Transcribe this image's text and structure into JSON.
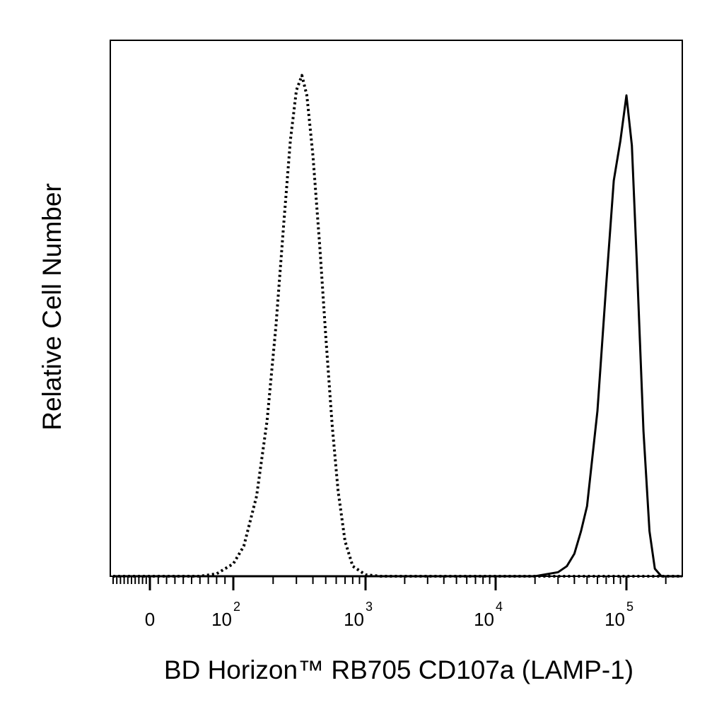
{
  "chart_data": {
    "type": "line",
    "title": "",
    "xlabel": "BD Horizon™ RB705 CD107a (LAMP-1)",
    "ylabel": "Relative Cell Number",
    "x_scale": "biexponential",
    "xlim": [
      -100,
      200000
    ],
    "ylim": [
      0,
      1.07
    ],
    "grid": false,
    "x_tick_labels": [
      {
        "base": "0",
        "exp": "",
        "value": 0
      },
      {
        "base": "10",
        "exp": "2",
        "value": 100
      },
      {
        "base": "10",
        "exp": "3",
        "value": 1000
      },
      {
        "base": "10",
        "exp": "4",
        "value": 10000
      },
      {
        "base": "10",
        "exp": "5",
        "value": 100000
      }
    ],
    "series": [
      {
        "style": "dotted",
        "x": [
          60,
          80,
          100,
          120,
          150,
          180,
          210,
          240,
          270,
          300,
          330,
          360,
          400,
          450,
          500,
          560,
          620,
          700,
          800,
          1000,
          1300,
          2000
        ],
        "y": [
          0,
          0.005,
          0.025,
          0.06,
          0.16,
          0.31,
          0.5,
          0.7,
          0.87,
          0.97,
          1.0,
          0.96,
          0.84,
          0.66,
          0.48,
          0.3,
          0.17,
          0.07,
          0.02,
          0.003,
          0,
          0
        ]
      },
      {
        "style": "solid",
        "x": [
          20000,
          30000,
          35000,
          40000,
          45000,
          50000,
          60000,
          70000,
          80000,
          90000,
          100000,
          110000,
          120000,
          135000,
          150000,
          165000,
          185000
        ],
        "y": [
          0,
          0.008,
          0.02,
          0.045,
          0.09,
          0.14,
          0.33,
          0.58,
          0.79,
          0.87,
          0.96,
          0.86,
          0.63,
          0.29,
          0.09,
          0.015,
          0
        ]
      }
    ]
  }
}
